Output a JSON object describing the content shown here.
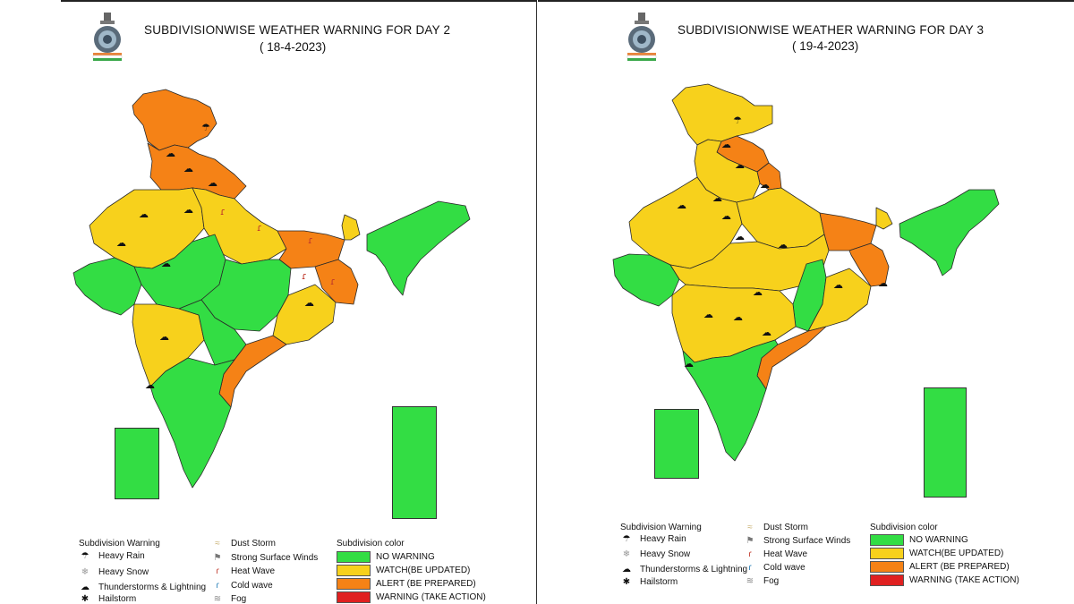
{
  "colors": {
    "no_warning": "#33dd44",
    "watch": "#f7d11c",
    "alert": "#f58216",
    "warning": "#e02020"
  },
  "panels": [
    {
      "title": "SUBDIVISIONWISE WEATHER WARNING FOR DAY 2",
      "date": "( 18-4-2023)",
      "legend": {
        "warning_header": "Subdivision Warning",
        "warnings": [
          {
            "icon": "heavy-rain-icon",
            "label": "Heavy Rain"
          },
          {
            "icon": "heavy-snow-icon",
            "label": "Heavy Snow"
          },
          {
            "icon": "thunderstorm-icon",
            "label": "Thunderstorms & Lightning"
          },
          {
            "icon": "hailstorm-icon",
            "label": "Hailstorm"
          },
          {
            "icon": "dust-storm-icon",
            "label": "Dust Storm"
          },
          {
            "icon": "wind-icon",
            "label": "Strong Surface Winds"
          },
          {
            "icon": "heat-wave-icon",
            "label": "Heat Wave"
          },
          {
            "icon": "cold-wave-icon",
            "label": "Cold wave"
          },
          {
            "icon": "fog-icon",
            "label": "Fog"
          }
        ],
        "color_header": "Subdivision color",
        "colors": [
          {
            "key": "no_warning",
            "label": "NO WARNING"
          },
          {
            "key": "watch",
            "label": "WATCH(BE UPDATED)"
          },
          {
            "key": "alert",
            "label": "ALERT (BE PREPARED)"
          },
          {
            "key": "warning",
            "label": "WARNING (TAKE ACTION)"
          }
        ]
      }
    },
    {
      "title": "SUBDIVISIONWISE WEATHER WARNING FOR DAY 3",
      "date": "( 19-4-2023)",
      "legend": {
        "warning_header": "Subdivision Warning",
        "warnings": [
          {
            "icon": "heavy-rain-icon",
            "label": "Heavy Rain"
          },
          {
            "icon": "heavy-snow-icon",
            "label": "Heavy Snow"
          },
          {
            "icon": "thunderstorm-icon",
            "label": "Thunderstorms & Lightning"
          },
          {
            "icon": "hailstorm-icon",
            "label": "Hailstorm"
          },
          {
            "icon": "dust-storm-icon",
            "label": "Dust Storm"
          },
          {
            "icon": "wind-icon",
            "label": "Strong Surface Winds"
          },
          {
            "icon": "heat-wave-icon",
            "label": "Heat Wave"
          },
          {
            "icon": "cold-wave-icon",
            "label": "Cold wave"
          },
          {
            "icon": "fog-icon",
            "label": "Fog"
          }
        ],
        "color_header": "Subdivision color",
        "colors": [
          {
            "key": "no_warning",
            "label": "NO WARNING"
          },
          {
            "key": "watch",
            "label": "WATCH(BE UPDATED)"
          },
          {
            "key": "alert",
            "label": "ALERT (BE PREPARED)"
          },
          {
            "key": "warning",
            "label": "WARNING (TAKE ACTION)"
          }
        ]
      }
    }
  ]
}
